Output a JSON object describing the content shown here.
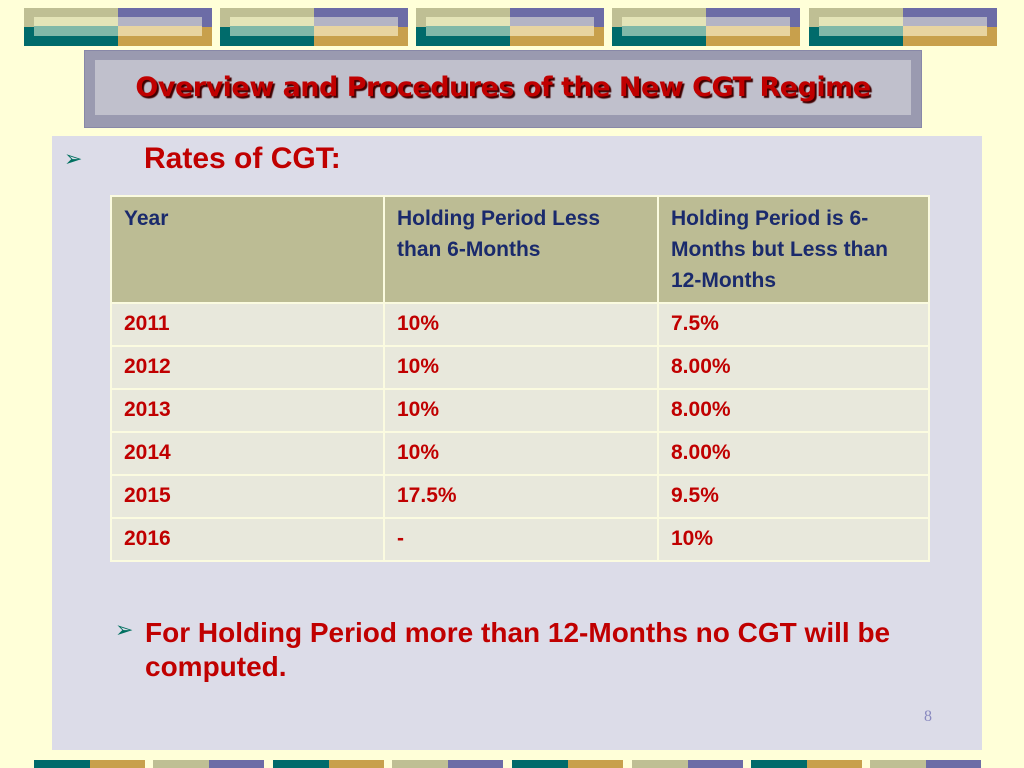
{
  "title": "Overview and Procedures of the New CGT Regime",
  "section_heading": "Rates of CGT:",
  "bullet_icon": "arrowhead-bullet-icon",
  "table": {
    "headers": [
      "Year",
      "Holding Period Less than 6-Months",
      "Holding Period is 6-Months but Less than 12-Months"
    ],
    "rows": [
      [
        "2011",
        "10%",
        "7.5%"
      ],
      [
        "2012",
        "10%",
        "8.00%"
      ],
      [
        "2013",
        "10%",
        "8.00%"
      ],
      [
        "2014",
        "10%",
        "8.00%"
      ],
      [
        "2015",
        "17.5%",
        "9.5%"
      ],
      [
        "2016",
        "-",
        "10%"
      ]
    ]
  },
  "note": "For Holding Period more than 12-Months no CGT will be computed.",
  "page_number": "8",
  "colors": {
    "title": "#c00000",
    "header_text": "#1a2a6c",
    "header_bg": "#bcbc94",
    "panel": "#dcdce8",
    "background": "#ffffd8"
  }
}
